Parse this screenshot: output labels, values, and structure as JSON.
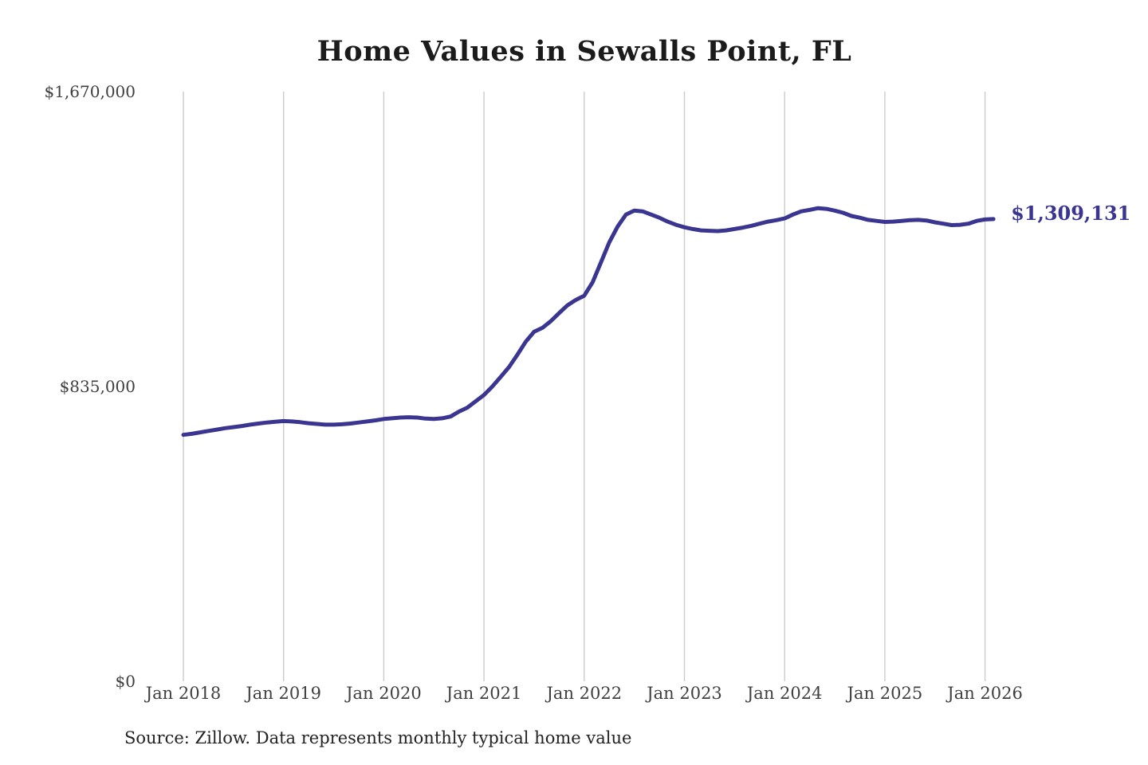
{
  "page": {
    "source_note": "Source: Zillow. Data represents monthly typical home value"
  },
  "chart_data": {
    "type": "line",
    "title": "Home Values in Sewalls Point, FL",
    "xlabel": "",
    "ylabel": "",
    "unit": "USD",
    "frequency": "monthly",
    "x_start": "Jan 2018",
    "x_end": "Feb 2026",
    "ylim": [
      0,
      1670000
    ],
    "grid": "vertical-only",
    "legend": "none",
    "end_label": "$1,309,131",
    "end_value": 1309131,
    "colors": {
      "accent": "#3a3590",
      "grid": "#cbcbcb",
      "title": "#1b1b1b",
      "axis_text": "#3f3f3f"
    },
    "y_ticks": [
      {
        "label": "$0",
        "value": 0
      },
      {
        "label": "$835,000",
        "value": 835000
      },
      {
        "label": "$1,670,000",
        "value": 1670000
      }
    ],
    "x_ticks": [
      {
        "label": "Jan 2018",
        "month_index": 0
      },
      {
        "label": "Jan 2019",
        "month_index": 12
      },
      {
        "label": "Jan 2020",
        "month_index": 24
      },
      {
        "label": "Jan 2021",
        "month_index": 36
      },
      {
        "label": "Jan 2022",
        "month_index": 48
      },
      {
        "label": "Jan 2023",
        "month_index": 60
      },
      {
        "label": "Jan 2024",
        "month_index": 72
      },
      {
        "label": "Jan 2025",
        "month_index": 84
      },
      {
        "label": "Jan 2026",
        "month_index": 96
      }
    ],
    "series": [
      {
        "name": "Monthly typical home value",
        "color": "#3a3590",
        "values": [
          698000,
          701000,
          705000,
          709000,
          713000,
          717000,
          720000,
          723000,
          727000,
          730000,
          733000,
          735000,
          737000,
          736000,
          734000,
          731000,
          729000,
          727000,
          727000,
          728000,
          730000,
          733000,
          736000,
          739000,
          743000,
          745000,
          747000,
          748000,
          747000,
          744000,
          743000,
          745000,
          750000,
          764000,
          775000,
          793000,
          811000,
          835000,
          862000,
          890000,
          925000,
          962000,
          990000,
          1001000,
          1020000,
          1043000,
          1065000,
          1080000,
          1092000,
          1130000,
          1186000,
          1243000,
          1288000,
          1322000,
          1333000,
          1331000,
          1322000,
          1313000,
          1302000,
          1293000,
          1286000,
          1281000,
          1277000,
          1276000,
          1275000,
          1277000,
          1281000,
          1285000,
          1290000,
          1296000,
          1302000,
          1306000,
          1311000,
          1322000,
          1331000,
          1335000,
          1340000,
          1338000,
          1333000,
          1327000,
          1318000,
          1313000,
          1307000,
          1304000,
          1301000,
          1302000,
          1304000,
          1306000,
          1307000,
          1305000,
          1300000,
          1296000,
          1292000,
          1293000,
          1296000,
          1304000,
          1308000,
          1309131
        ]
      }
    ]
  }
}
